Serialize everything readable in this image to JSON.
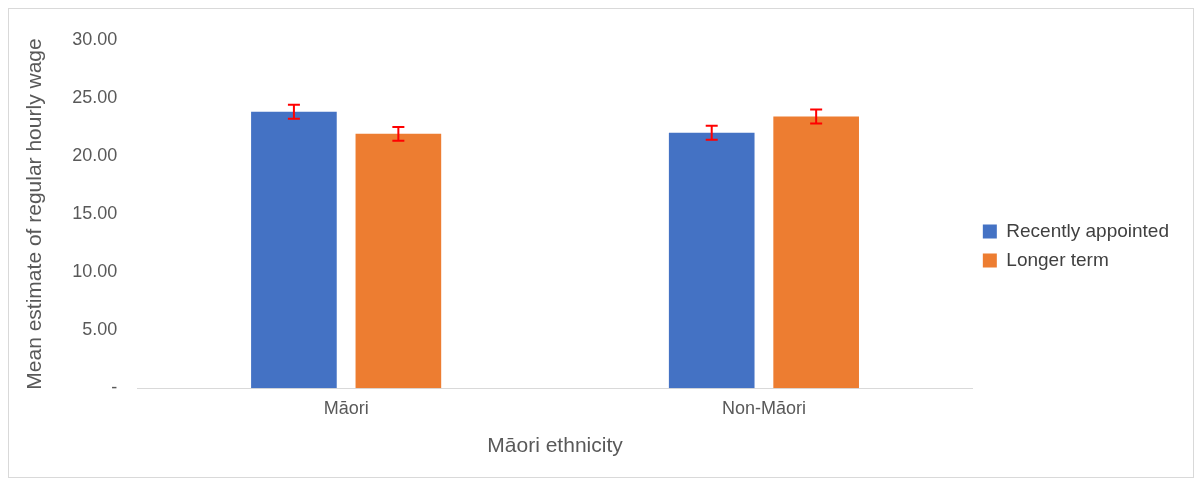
{
  "chart_data": {
    "type": "bar",
    "xlabel": "Māori ethnicity",
    "ylabel": "Mean estimate of regular hourly wage",
    "categories": [
      "Māori",
      "Non-Māori"
    ],
    "series": [
      {
        "name": "Recently appointed",
        "color": "#4472c4",
        "values": [
          23.8,
          22.0
        ],
        "errors": [
          0.6,
          0.6
        ]
      },
      {
        "name": "Longer term",
        "color": "#ed7d31",
        "values": [
          21.9,
          23.4
        ],
        "errors": [
          0.6,
          0.6
        ]
      }
    ],
    "ylim": [
      0,
      30
    ],
    "yticks": [
      {
        "value": 0,
        "label": "-"
      },
      {
        "value": 5,
        "label": "5.00"
      },
      {
        "value": 10,
        "label": "10.00"
      },
      {
        "value": 15,
        "label": "15.00"
      },
      {
        "value": 20,
        "label": "20.00"
      },
      {
        "value": 25,
        "label": "25.00"
      },
      {
        "value": 30,
        "label": "30.00"
      }
    ],
    "grid": false,
    "legend": "right"
  }
}
